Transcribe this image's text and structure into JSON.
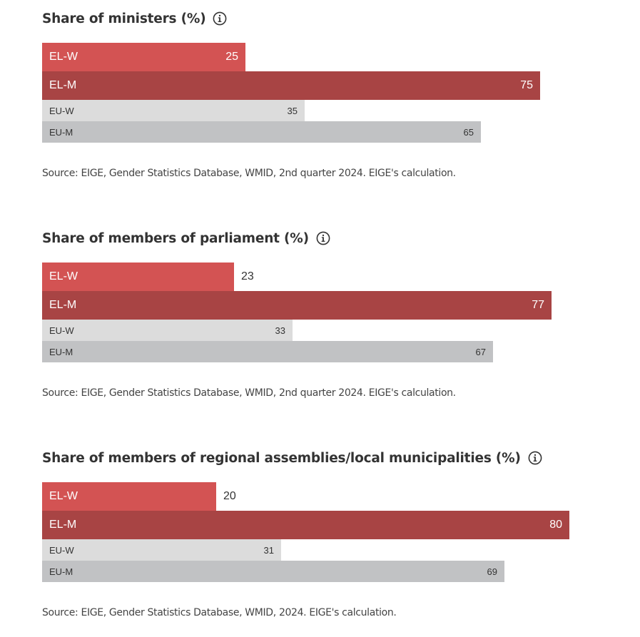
{
  "charts": [
    {
      "title": "Share of ministers (%)",
      "source": "Source: EIGE, Gender Statistics Database, WMID, 2nd quarter 2024. EIGE's calculation."
    },
    {
      "title": "Share of members of parliament (%)",
      "source": "Source: EIGE, Gender Statistics Database, WMID, 2nd quarter 2024. EIGE's calculation."
    },
    {
      "title": "Share of members of regional assemblies/local municipalities (%)",
      "source": "Source: EIGE, Gender Statistics Database, WMID, 2024. EIGE's calculation."
    }
  ],
  "info_icon": "info-circle-icon",
  "colors": {
    "EL-W": "#d35353",
    "EL-M": "#a84444",
    "EU-W": "#dcdcdc",
    "EU-M": "#c1c2c4",
    "text_on_dark": "#ffffff",
    "text_on_light": "#333333"
  },
  "chart_data": [
    {
      "type": "bar",
      "orientation": "horizontal",
      "title": "Share of ministers (%)",
      "categories": [
        "EL-W",
        "EL-M",
        "EU-W",
        "EU-M"
      ],
      "values": [
        25,
        75,
        35,
        65
      ],
      "xlim": [
        0,
        100
      ]
    },
    {
      "type": "bar",
      "orientation": "horizontal",
      "title": "Share of members of parliament (%)",
      "categories": [
        "EL-W",
        "EL-M",
        "EU-W",
        "EU-M"
      ],
      "values": [
        23,
        77,
        33,
        67
      ],
      "xlim": [
        0,
        100
      ]
    },
    {
      "type": "bar",
      "orientation": "horizontal",
      "title": "Share of members of regional assemblies/local municipalities (%)",
      "categories": [
        "EL-W",
        "EL-M",
        "EU-W",
        "EU-M"
      ],
      "values": [
        20,
        80,
        31,
        69
      ],
      "xlim": [
        0,
        100
      ]
    }
  ]
}
